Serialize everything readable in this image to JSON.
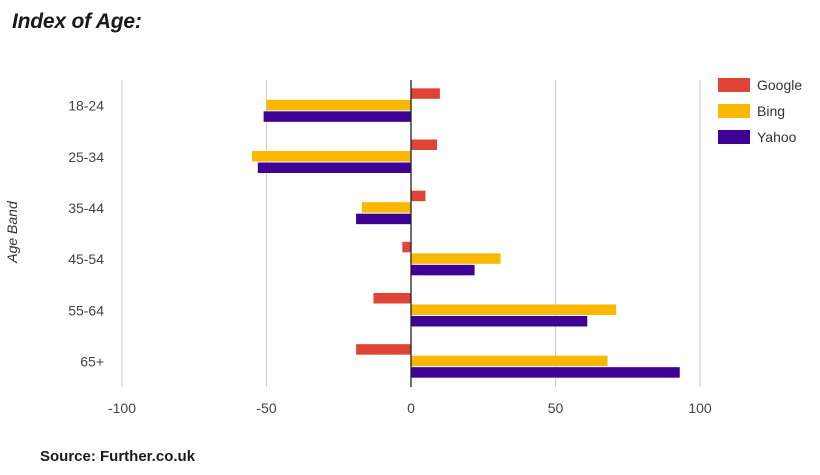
{
  "title": "Index of Age:",
  "source": "Source: Further.co.uk",
  "chart_data": {
    "type": "bar",
    "orientation": "horizontal",
    "title": "Index of Age:",
    "ylabel": "Age Band",
    "xlabel": "",
    "categories": [
      "18-24",
      "25-34",
      "35-44",
      "45-54",
      "55-64",
      "65+"
    ],
    "series": [
      {
        "name": "Google",
        "color": "#e04436",
        "values": [
          10,
          9,
          5,
          -3,
          -13,
          -19
        ]
      },
      {
        "name": "Bing",
        "color": "#fbb800",
        "values": [
          -50,
          -55,
          -17,
          31,
          71,
          68
        ]
      },
      {
        "name": "Yahoo",
        "color": "#3f0094",
        "values": [
          -51,
          -53,
          -19,
          22,
          61,
          93
        ]
      }
    ],
    "xlim": [
      -100,
      100
    ],
    "xticks": [
      -100,
      -50,
      0,
      50,
      100
    ],
    "xtick_labels": [
      "-100",
      "-50",
      "0",
      "50",
      "100"
    ],
    "grid": true,
    "legend_position": "right"
  }
}
